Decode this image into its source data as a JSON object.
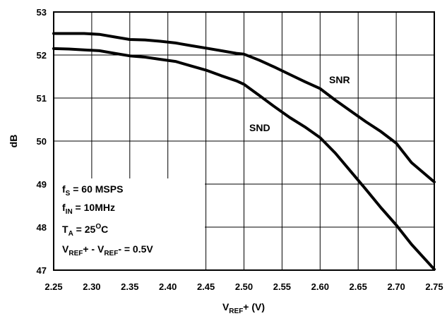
{
  "chart_data": {
    "type": "line",
    "xlabel": {
      "main": "V",
      "sub": "REF",
      "tail": "+ (V)"
    },
    "ylabel": "dB",
    "xlim": [
      2.25,
      2.75
    ],
    "ylim": [
      47,
      53
    ],
    "x_ticks": [
      "2.25",
      "2.30",
      "2.35",
      "2.40",
      "2.45",
      "2.50",
      "2.55",
      "2.60",
      "2.65",
      "2.70",
      "2.75"
    ],
    "y_ticks": [
      "47",
      "48",
      "49",
      "50",
      "51",
      "52",
      "53"
    ],
    "grid": true,
    "series": [
      {
        "name": "SNR",
        "x": [
          2.25,
          2.27,
          2.29,
          2.31,
          2.33,
          2.35,
          2.37,
          2.39,
          2.41,
          2.43,
          2.45,
          2.47,
          2.49,
          2.5,
          2.52,
          2.54,
          2.56,
          2.58,
          2.6,
          2.62,
          2.64,
          2.66,
          2.68,
          2.7,
          2.72,
          2.75
        ],
        "y": [
          52.5,
          52.5,
          52.5,
          52.48,
          52.42,
          52.36,
          52.35,
          52.32,
          52.28,
          52.22,
          52.16,
          52.1,
          52.04,
          52.02,
          51.88,
          51.72,
          51.55,
          51.38,
          51.22,
          50.95,
          50.7,
          50.45,
          50.22,
          49.95,
          49.5,
          49.05
        ]
      },
      {
        "name": "SND",
        "x": [
          2.25,
          2.27,
          2.29,
          2.31,
          2.33,
          2.35,
          2.37,
          2.39,
          2.41,
          2.43,
          2.45,
          2.47,
          2.49,
          2.5,
          2.52,
          2.54,
          2.56,
          2.58,
          2.6,
          2.62,
          2.64,
          2.66,
          2.68,
          2.7,
          2.72,
          2.75
        ],
        "y": [
          52.15,
          52.14,
          52.12,
          52.1,
          52.04,
          51.98,
          51.95,
          51.9,
          51.85,
          51.75,
          51.65,
          51.52,
          51.4,
          51.32,
          51.06,
          50.8,
          50.55,
          50.33,
          50.08,
          49.72,
          49.3,
          48.88,
          48.45,
          48.05,
          47.6,
          47.02
        ]
      }
    ],
    "annotations": {
      "snr_label": "SNR",
      "snd_label": "SND"
    },
    "conditions": {
      "line1": {
        "pre": "f",
        "sub": "S",
        "post": " = 60 MSPS"
      },
      "line2": {
        "pre": "f",
        "sub": "IN",
        "post": " = 10MHz"
      },
      "line3": {
        "pre": "T",
        "sub": "A",
        "post": " = 25",
        "sup": "O",
        "tail": "C"
      },
      "line4": {
        "pre": "V",
        "sub1": "REF",
        "mid": "+ - V",
        "sub2": "REF",
        "post": "- = 0.5V"
      }
    }
  }
}
